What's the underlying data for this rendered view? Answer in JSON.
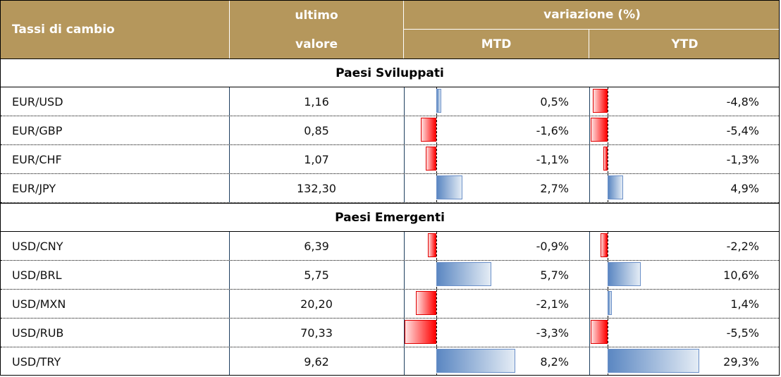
{
  "header": {
    "name": "Tassi di cambio",
    "last_line1": "ultimo",
    "last_line2": "valore",
    "variation": "variazione (%)",
    "mtd": "MTD",
    "ytd": "YTD"
  },
  "colors": {
    "header_bg": "#b5975c",
    "positive": "#5b87c2",
    "negative": "#ff0000"
  },
  "sections": [
    {
      "title": "Paesi Sviluppati",
      "rows": [
        {
          "pair": "EUR/USD",
          "value": "1,16",
          "mtd": 0.5,
          "mtd_label": "0,5%",
          "ytd": -4.8,
          "ytd_label": "-4,8%"
        },
        {
          "pair": "EUR/GBP",
          "value": "0,85",
          "mtd": -1.6,
          "mtd_label": "-1,6%",
          "ytd": -5.4,
          "ytd_label": "-5,4%"
        },
        {
          "pair": "EUR/CHF",
          "value": "1,07",
          "mtd": -1.1,
          "mtd_label": "-1,1%",
          "ytd": -1.3,
          "ytd_label": "-1,3%"
        },
        {
          "pair": "EUR/JPY",
          "value": "132,30",
          "mtd": 2.7,
          "mtd_label": "2,7%",
          "ytd": 4.9,
          "ytd_label": "4,9%"
        }
      ]
    },
    {
      "title": "Paesi Emergenti",
      "rows": [
        {
          "pair": "USD/CNY",
          "value": "6,39",
          "mtd": -0.9,
          "mtd_label": "-0,9%",
          "ytd": -2.2,
          "ytd_label": "-2,2%"
        },
        {
          "pair": "USD/BRL",
          "value": "5,75",
          "mtd": 5.7,
          "mtd_label": "5,7%",
          "ytd": 10.6,
          "ytd_label": "10,6%"
        },
        {
          "pair": "USD/MXN",
          "value": "20,20",
          "mtd": -2.1,
          "mtd_label": "-2,1%",
          "ytd": 1.4,
          "ytd_label": "1,4%"
        },
        {
          "pair": "USD/RUB",
          "value": "70,33",
          "mtd": -3.3,
          "mtd_label": "-3,3%",
          "ytd": -5.5,
          "ytd_label": "-5,5%"
        },
        {
          "pair": "USD/TRY",
          "value": "9,62",
          "mtd": 8.2,
          "mtd_label": "8,2%",
          "ytd": 29.3,
          "ytd_label": "29,3%"
        }
      ]
    }
  ]
}
